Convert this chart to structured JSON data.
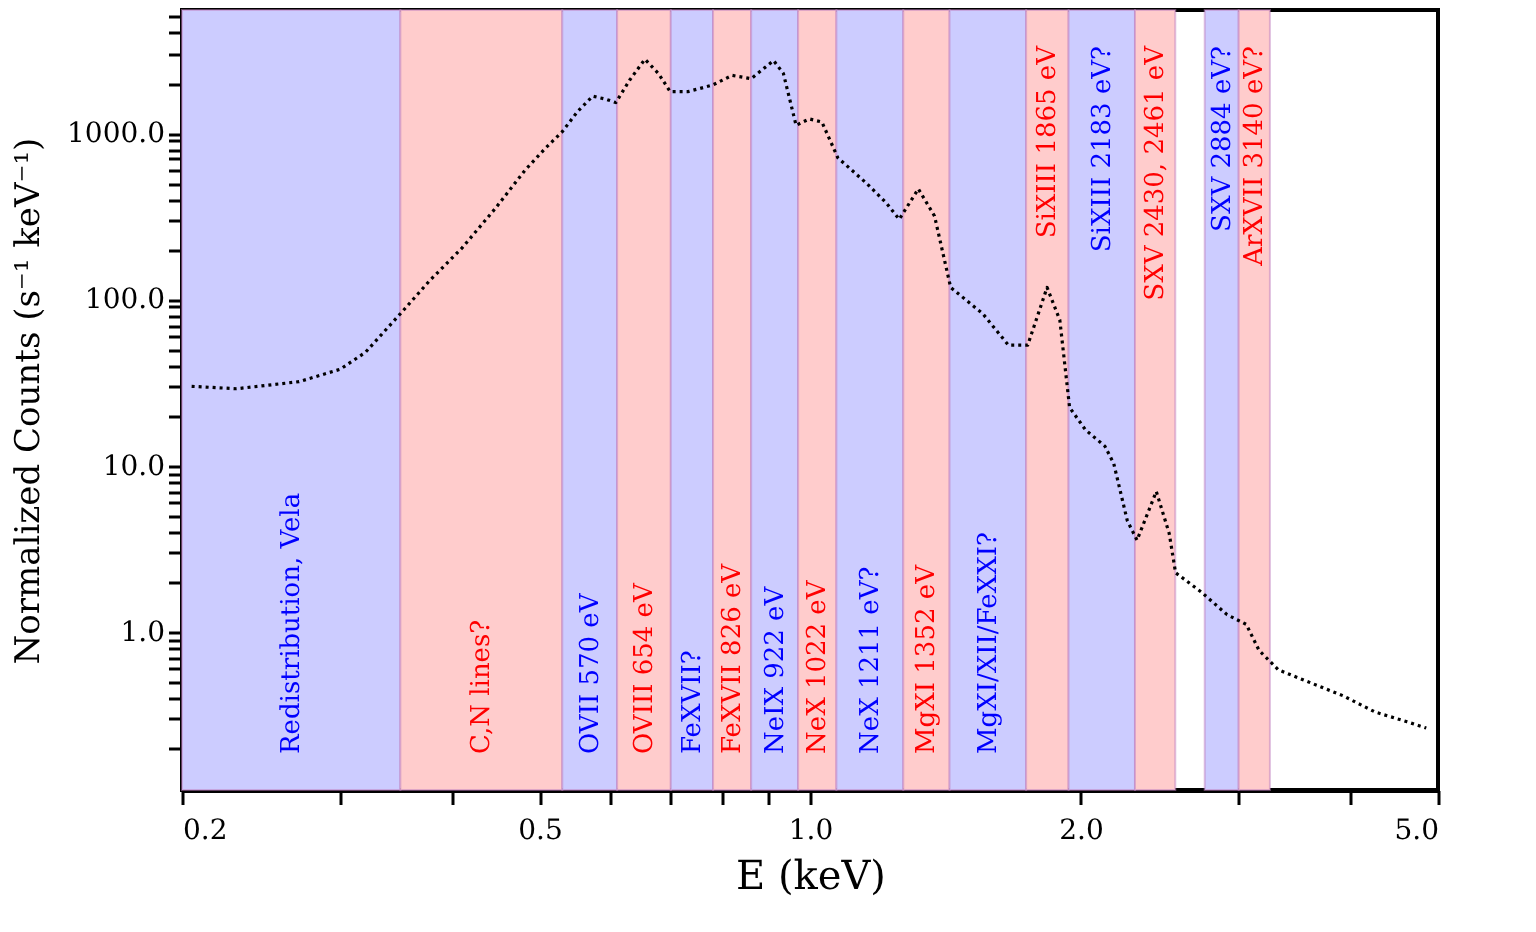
{
  "chart_data": {
    "type": "line",
    "xlabel": "E (keV)",
    "ylabel": "Normalized Counts (s⁻¹ keV⁻¹)",
    "log": "xy",
    "grid": false,
    "marker": "none",
    "line_style": "dotted",
    "xlim": [
      0.2,
      5.0
    ],
    "ylim": [
      0.112,
      5500
    ],
    "xticks": [
      0.2,
      {
        "value": 0.3,
        "label": null
      },
      {
        "value": 0.4,
        "label": null
      },
      0.5,
      {
        "value": 0.6,
        "label": null
      },
      {
        "value": 0.7,
        "label": null
      },
      {
        "value": 0.8,
        "label": null
      },
      {
        "value": 0.9,
        "label": null
      },
      {
        "value": 1,
        "label": "1.0"
      },
      {
        "value": 2,
        "label": "2.0"
      },
      {
        "value": 3,
        "label": null
      },
      {
        "value": 4,
        "label": null
      },
      {
        "value": 5,
        "label": "5.0"
      }
    ],
    "yticks": [
      {
        "value": 0.2,
        "label": null
      },
      {
        "value": 0.3,
        "label": null
      },
      {
        "value": 0.4,
        "label": null
      },
      {
        "value": 0.5,
        "label": null
      },
      {
        "value": 0.6,
        "label": null
      },
      {
        "value": 0.7,
        "label": null
      },
      {
        "value": 0.8,
        "label": null
      },
      {
        "value": 0.9,
        "label": null
      },
      {
        "value": 1,
        "label": "1.0"
      },
      {
        "value": 2,
        "label": null
      },
      {
        "value": 3,
        "label": null
      },
      {
        "value": 4,
        "label": null
      },
      {
        "value": 5,
        "label": null
      },
      {
        "value": 6,
        "label": null
      },
      {
        "value": 7,
        "label": null
      },
      {
        "value": 8,
        "label": null
      },
      {
        "value": 9,
        "label": null
      },
      {
        "value": 10,
        "label": "10.0"
      },
      {
        "value": 20,
        "label": null
      },
      {
        "value": 30,
        "label": null
      },
      {
        "value": 40,
        "label": null
      },
      {
        "value": 50,
        "label": null
      },
      {
        "value": 60,
        "label": null
      },
      {
        "value": 70,
        "label": null
      },
      {
        "value": 80,
        "label": null
      },
      {
        "value": 90,
        "label": null
      },
      {
        "value": 100,
        "label": "100.0"
      },
      {
        "value": 200,
        "label": null
      },
      {
        "value": 300,
        "label": null
      },
      {
        "value": 400,
        "label": null
      },
      {
        "value": 500,
        "label": null
      },
      {
        "value": 600,
        "label": null
      },
      {
        "value": 700,
        "label": null
      },
      {
        "value": 800,
        "label": null
      },
      {
        "value": 900,
        "label": null
      },
      {
        "value": 1000,
        "label": "1000.0"
      },
      {
        "value": 2000,
        "label": null
      },
      {
        "value": 3000,
        "label": null
      },
      {
        "value": 4000,
        "label": null
      },
      {
        "value": 5000,
        "label": null
      }
    ],
    "series": [
      {
        "color": "#000000",
        "x": [
          0.205,
          0.23,
          0.27,
          0.3,
          0.32,
          0.35,
          0.377,
          0.41,
          0.446,
          0.482,
          0.507,
          0.53,
          0.551,
          0.573,
          0.594,
          0.608,
          0.63,
          0.655,
          0.678,
          0.699,
          0.731,
          0.779,
          0.819,
          0.86,
          0.911,
          0.934,
          0.965,
          0.998,
          1.031,
          1.074,
          1.157,
          1.216,
          1.257,
          1.32,
          1.376,
          1.434,
          1.557,
          1.663,
          1.747,
          1.836,
          1.897,
          1.945,
          2.026,
          2.129,
          2.178,
          2.255,
          2.312,
          2.429,
          2.511,
          2.552,
          2.725,
          2.912,
          3.059,
          3.161,
          3.321,
          3.608,
          3.92,
          4.254,
          4.619,
          4.852
        ],
        "values": [
          30,
          29,
          32,
          38,
          48,
          82,
          129,
          204,
          350,
          600,
          806,
          1020,
          1345,
          1668,
          1593,
          1526,
          2085,
          2781,
          2286,
          1775,
          1775,
          1945,
          2224,
          2125,
          2730,
          2286,
          1114,
          1217,
          1166,
          710,
          497,
          380,
          303,
          462,
          317,
          118,
          82,
          53,
          53,
          118,
          75,
          22.4,
          16.4,
          13.1,
          10.3,
          4.67,
          3.56,
          6.99,
          3.9,
          2.27,
          1.74,
          1.27,
          1.11,
          0.774,
          0.592,
          0.494,
          0.413,
          0.33,
          0.288,
          0.264
        ]
      }
    ],
    "bands": [
      {
        "axis": "x",
        "from": 0.2,
        "to": 0.35,
        "label": "Redistribution, Vela",
        "color": "#ccccff"
      },
      {
        "axis": "x",
        "from": 0.35,
        "to": 0.53,
        "label": "C,N lines?",
        "color": "#ffcccc"
      },
      {
        "axis": "x",
        "from": 0.53,
        "to": 0.61,
        "label": "OVII 570 eV",
        "color": "#ccccff"
      },
      {
        "axis": "x",
        "from": 0.61,
        "to": 0.7,
        "label": "OVIII 654 eV",
        "color": "#ffcccc"
      },
      {
        "axis": "x",
        "from": 0.7,
        "to": 0.78,
        "label": "FeXVII?",
        "color": "#ccccff"
      },
      {
        "axis": "x",
        "from": 0.78,
        "to": 0.86,
        "label": "FeXVII 826 eV",
        "color": "#ffcccc"
      },
      {
        "axis": "x",
        "from": 0.86,
        "to": 0.97,
        "label": "NeIX 922 eV",
        "color": "#ccccff"
      },
      {
        "axis": "x",
        "from": 0.97,
        "to": 1.07,
        "label": "NeX 1022 eV",
        "color": "#ffcccc"
      },
      {
        "axis": "x",
        "from": 1.07,
        "to": 1.27,
        "label": "NeX 1211 eV?",
        "color": "#ccccff"
      },
      {
        "axis": "x",
        "from": 1.27,
        "to": 1.43,
        "label": "MgXI 1352 eV",
        "color": "#ffcccc"
      },
      {
        "axis": "x",
        "from": 1.43,
        "to": 1.74,
        "label": "MgXI/XII/FeXXI?",
        "color": "#ccccff"
      },
      {
        "axis": "x",
        "from": 1.74,
        "to": 1.94,
        "label": "SiXIII 1865 eV",
        "color": "#ffcccc"
      },
      {
        "axis": "x",
        "from": 1.94,
        "to": 2.3,
        "label": "SiXIII 2183 eV?",
        "color": "#ccccff"
      },
      {
        "axis": "x",
        "from": 2.3,
        "to": 2.55,
        "label": "SXV 2430, 2461 eV",
        "color": "#ffcccc"
      },
      {
        "axis": "x",
        "from": 2.75,
        "to": 3.0,
        "label": "SXV 2884 eV?",
        "color": "#ccccff"
      },
      {
        "axis": "x",
        "from": 3.0,
        "to": 3.25,
        "label": "ArXVII 3140 eV?",
        "color": "#ffcccc"
      }
    ]
  }
}
